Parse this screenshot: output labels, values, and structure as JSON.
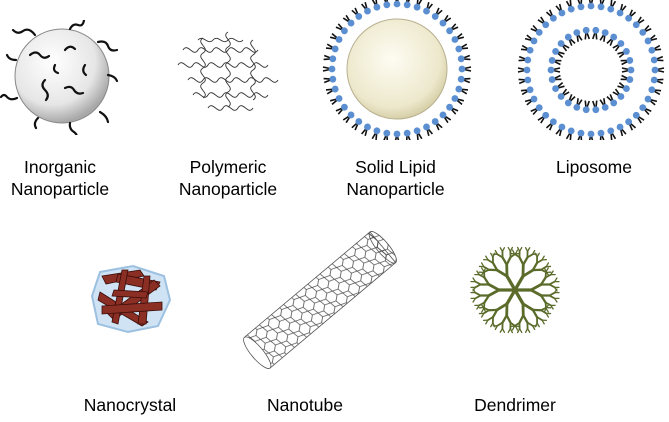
{
  "figure": {
    "items": [
      {
        "id": "inorganic",
        "label": "Inorganic\nNanoparticle",
        "icon": "inorganic-nanoparticle-icon"
      },
      {
        "id": "polymeric",
        "label": "Polymeric\nNanoparticle",
        "icon": "polymeric-nanoparticle-icon"
      },
      {
        "id": "solid-lipid",
        "label": "Solid Lipid\nNanoparticle",
        "icon": "solid-lipid-nanoparticle-icon"
      },
      {
        "id": "liposome",
        "label": "Liposome",
        "icon": "liposome-icon"
      },
      {
        "id": "nanocrystal",
        "label": "Nanocrystal",
        "icon": "nanocrystal-icon"
      },
      {
        "id": "nanotube",
        "label": "Nanotube",
        "icon": "nanotube-icon"
      },
      {
        "id": "dendrimer",
        "label": "Dendrimer",
        "icon": "dendrimer-icon"
      }
    ]
  },
  "colors": {
    "lipid_head": "#5b8fd1",
    "lipid_tail": "#111111",
    "solid_lipid_core": "#ede8cc",
    "nanocrystal": "#8b2e24",
    "nanocrystal_halo": "#b8d4ee",
    "dendrimer": "#5a6b2a",
    "inorganic_core": "#d9d9d9"
  }
}
